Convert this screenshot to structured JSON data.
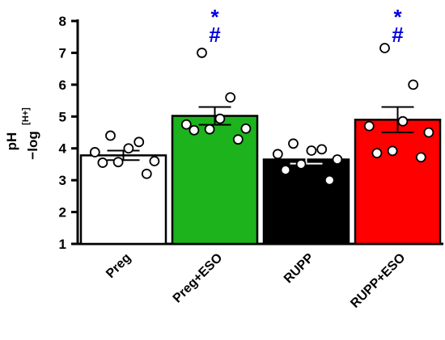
{
  "chart_data": {
    "type": "bar",
    "title": "",
    "xlabel": "",
    "ylabel_main": "pH",
    "ylabel_sub": "−log",
    "ylabel_sup": "[H+]",
    "ylim": [
      1,
      8
    ],
    "yticks": [
      "1",
      "2",
      "3",
      "4",
      "5",
      "6",
      "7",
      "8"
    ],
    "categories": [
      "Preg",
      "Preg+ESO",
      "RUPP",
      "RUPP+ESO"
    ],
    "values": [
      3.78,
      5.02,
      3.65,
      4.9
    ],
    "errors": [
      0.15,
      0.28,
      0.13,
      0.4
    ],
    "colors": [
      "#ffffff",
      "#1db31d",
      "#000000",
      "#ff0000"
    ],
    "points": [
      [
        4.4,
        4.2,
        4.0,
        3.88,
        3.6,
        3.57,
        3.55,
        3.2
      ],
      [
        7.0,
        5.6,
        4.93,
        4.75,
        4.62,
        4.6,
        4.57,
        4.28
      ],
      [
        4.15,
        3.97,
        3.93,
        3.82,
        3.65,
        3.5,
        3.32,
        3.0
      ],
      [
        7.15,
        6.0,
        4.85,
        4.7,
        4.5,
        3.92,
        3.85,
        3.72
      ]
    ],
    "annotations": [
      {
        "category": "Preg+ESO",
        "marks": [
          "*",
          "#"
        ],
        "color": "#0000e0"
      },
      {
        "category": "RUPP+ESO",
        "marks": [
          "*",
          "#"
        ],
        "color": "#0000e0"
      }
    ],
    "grid": false,
    "legend": "none"
  }
}
